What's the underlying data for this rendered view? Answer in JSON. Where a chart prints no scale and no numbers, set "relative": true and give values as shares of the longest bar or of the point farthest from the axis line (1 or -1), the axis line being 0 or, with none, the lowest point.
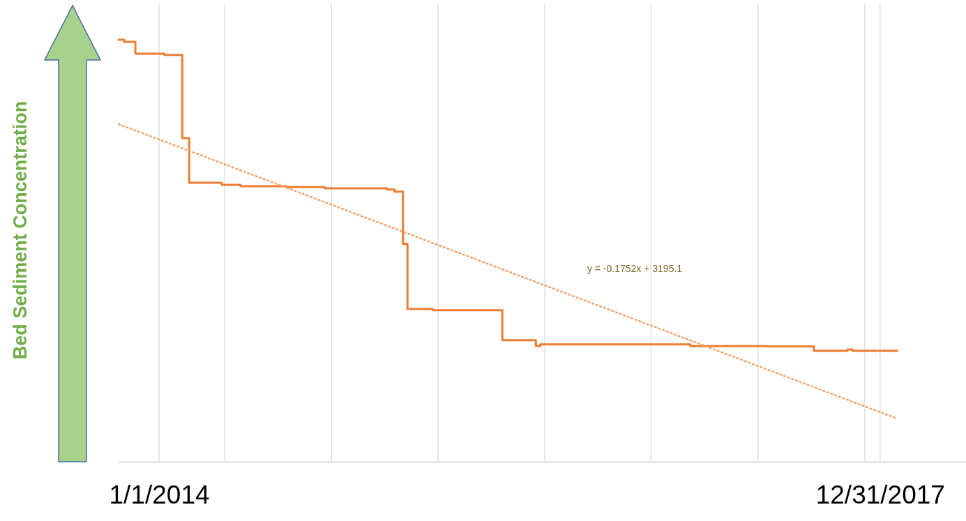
{
  "chart_data": {
    "type": "step",
    "ylabel": "Bed Sediment Concentration",
    "relative": true,
    "grid": "x",
    "xlim": [
      "2013-10-11",
      "2018-06-23"
    ],
    "xticks": [
      {
        "value": "2014-01-01",
        "label": "1/1/2014"
      },
      {
        "value": "2014-05-14",
        "label": null
      },
      {
        "value": "2014-12-16",
        "label": null
      },
      {
        "value": "2015-07-20",
        "label": null
      },
      {
        "value": "2016-02-21",
        "label": null
      },
      {
        "value": "2016-09-23",
        "label": null
      },
      {
        "value": "2017-04-28",
        "label": null
      },
      {
        "value": "2017-11-30",
        "label": null
      },
      {
        "value": "2017-12-31",
        "label": "12/31/2017"
      }
    ],
    "series": [
      {
        "color": "#ed7d31",
        "line_style": "solid",
        "x": [
          "2013-10-11",
          "2013-10-22",
          "2013-11-14",
          "2014-01-12",
          "2014-02-17",
          "2014-03-03",
          "2014-05-08",
          "2014-06-15",
          "2014-09-15",
          "2014-12-02",
          "2015-04-08",
          "2015-04-23",
          "2015-05-10",
          "2015-05-19",
          "2015-07-09",
          "2015-11-27",
          "2016-02-03",
          "2016-02-12",
          "2016-12-12",
          "2017-05-16",
          "2017-08-19",
          "2017-10-26",
          "2017-11-05",
          "2018-02-04"
        ],
        "values": [
          1.0,
          0.995,
          0.967,
          0.964,
          0.767,
          0.661,
          0.656,
          0.653,
          0.651,
          0.648,
          0.645,
          0.64,
          0.516,
          0.362,
          0.359,
          0.288,
          0.274,
          0.278,
          0.274,
          0.273,
          0.263,
          0.266,
          0.263,
          0.263
        ]
      },
      {
        "type": "line",
        "color": "#f4a46a",
        "line_style": "dotted",
        "x": [
          "2013-10-11",
          "2018-02-04"
        ],
        "values": [
          0.8,
          0.102
        ]
      }
    ],
    "annotations": [
      "y = -0.1752x + 3195.1"
    ]
  }
}
